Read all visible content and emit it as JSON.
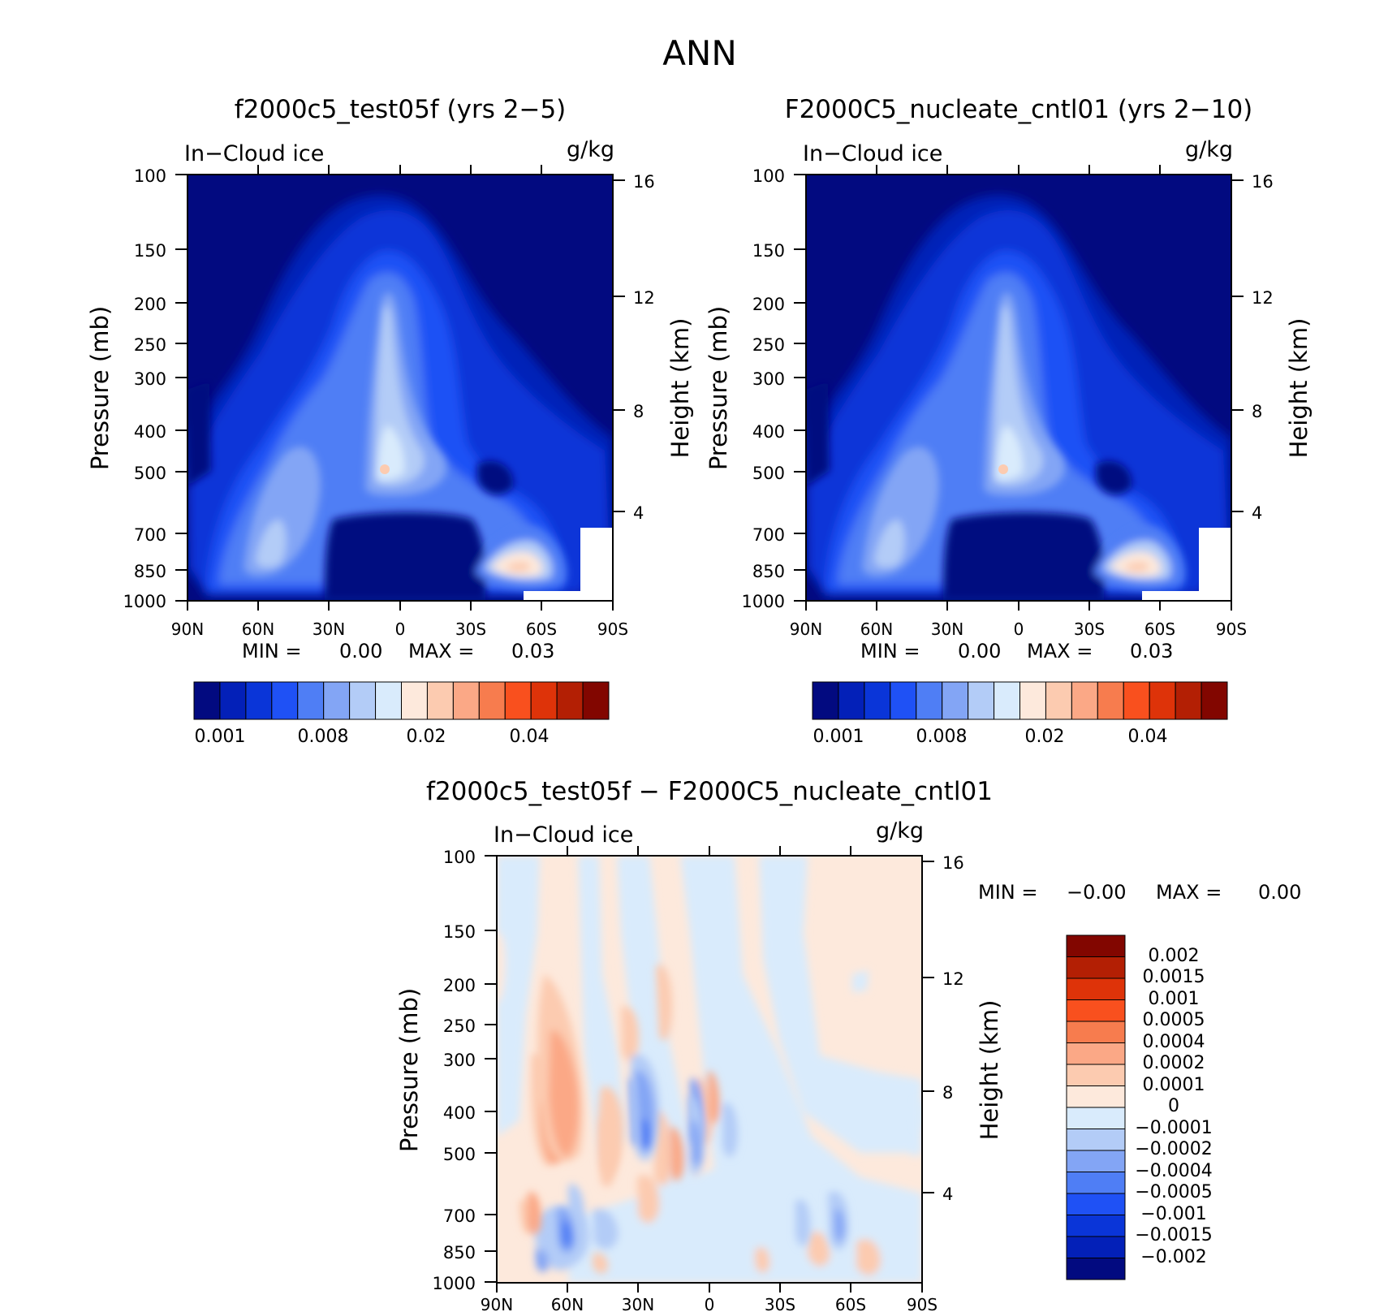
{
  "figure": {
    "title": "ANN"
  },
  "panel_texts": {
    "variable": "In−Cloud ice",
    "units": "g/kg",
    "ylabel": "Pressure (mb)",
    "ylabel_right": "Height (km)",
    "min_label": "MIN =",
    "max_label": "MAX ="
  },
  "chart_data": [
    {
      "type": "heatmap",
      "title": "f2000c5_test05f (yrs 2−5)",
      "x_ticks": [
        "90N",
        "60N",
        "30N",
        "0",
        "30S",
        "60S",
        "90S"
      ],
      "y_ticks": [
        100,
        150,
        200,
        250,
        300,
        400,
        500,
        700,
        850,
        1000
      ],
      "y_scale": "log",
      "ylim": [
        1000,
        100
      ],
      "height_ticks": [
        4,
        8,
        12,
        16
      ],
      "min": "0.00",
      "max": "0.03",
      "colorbar_levels": 16,
      "colorbar_labels": [
        "0.001",
        "0.008",
        "0.02",
        "0.04"
      ],
      "colorbar_colors": [
        "#020a80",
        "#0320b8",
        "#0a35d8",
        "#1f51f5",
        "#4f7ef5",
        "#83a5f5",
        "#b3ccf7",
        "#d9ebfc",
        "#fde9dc",
        "#fccbb0",
        "#fba886",
        "#f77c4e",
        "#f9501e",
        "#de3309",
        "#b31f04",
        "#820600"
      ]
    },
    {
      "type": "heatmap",
      "title": "F2000C5_nucleate_cntl01 (yrs 2−10)",
      "x_ticks": [
        "90N",
        "60N",
        "30N",
        "0",
        "30S",
        "60S",
        "90S"
      ],
      "y_ticks": [
        100,
        150,
        200,
        250,
        300,
        400,
        500,
        700,
        850,
        1000
      ],
      "y_scale": "log",
      "ylim": [
        1000,
        100
      ],
      "height_ticks": [
        4,
        8,
        12,
        16
      ],
      "min": "0.00",
      "max": "0.03",
      "colorbar_levels": 16,
      "colorbar_labels": [
        "0.001",
        "0.008",
        "0.02",
        "0.04"
      ],
      "colorbar_colors": [
        "#020a80",
        "#0320b8",
        "#0a35d8",
        "#1f51f5",
        "#4f7ef5",
        "#83a5f5",
        "#b3ccf7",
        "#d9ebfc",
        "#fde9dc",
        "#fccbb0",
        "#fba886",
        "#f77c4e",
        "#f9501e",
        "#de3309",
        "#b31f04",
        "#820600"
      ]
    },
    {
      "type": "heatmap",
      "title": "f2000c5_test05f − F2000C5_nucleate_cntl01",
      "x_ticks": [
        "90N",
        "60N",
        "30N",
        "0",
        "30S",
        "60S",
        "90S"
      ],
      "y_ticks": [
        100,
        150,
        200,
        250,
        300,
        400,
        500,
        700,
        850,
        1000
      ],
      "y_scale": "log",
      "ylim": [
        1000,
        100
      ],
      "height_ticks": [
        4,
        8,
        12,
        16
      ],
      "min": "−0.00",
      "max": "0.00",
      "colorbar_labels": [
        "0.002",
        "0.0015",
        "0.001",
        "0.0005",
        "0.0004",
        "0.0002",
        "0.0001",
        "0",
        "−0.0001",
        "−0.0002",
        "−0.0004",
        "−0.0005",
        "−0.001",
        "−0.0015",
        "−0.002"
      ],
      "colorbar_colors": [
        "#820600",
        "#b31f04",
        "#de3309",
        "#f9501e",
        "#f77c4e",
        "#fba886",
        "#fccbb0",
        "#fde9dc",
        "#d9ebfc",
        "#b3ccf7",
        "#83a5f5",
        "#4f7ef5",
        "#1f51f5",
        "#0a35d8",
        "#0320b8",
        "#020a80"
      ]
    }
  ]
}
